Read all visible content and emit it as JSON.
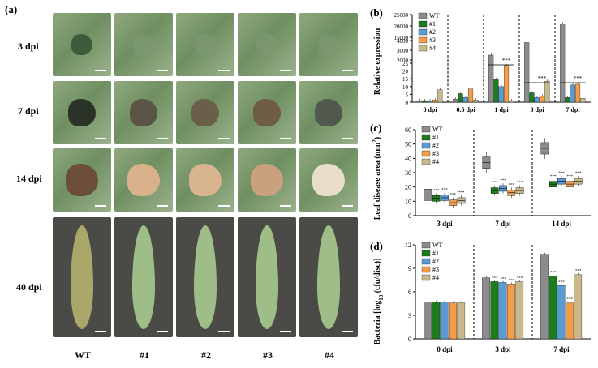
{
  "panels": {
    "a": "(a)",
    "b": "(b)",
    "c": "(c)",
    "d": "(d)"
  },
  "rows": [
    "3 dpi",
    "7 dpi",
    "14 dpi",
    "40 dpi"
  ],
  "cols": [
    "WT",
    "#1",
    "#2",
    "#3",
    "#4"
  ],
  "colors": {
    "WT": "#8c8c8c",
    "#1": "#1e7b1e",
    "#2": "#5b9bd5",
    "#3": "#f39c4a",
    "#4": "#c8b98a"
  },
  "chart_data": [
    {
      "type": "bar",
      "ylabel": "Relative expression",
      "categories": [
        "0 dpi",
        "0.5 dpi",
        "1 dpi",
        "3 dpi",
        "7 dpi"
      ],
      "ticks_low": [
        "0",
        "5",
        "10",
        "15",
        "20",
        "25"
      ],
      "ticks_high": [
        "2000",
        "3000",
        "4000",
        "15000",
        "20000",
        "25000"
      ],
      "significance": "***",
      "series": [
        {
          "name": "WT",
          "values": [
            1,
            2,
            2500,
            3800,
            21000
          ]
        },
        {
          "name": "#1",
          "values": [
            1,
            5.5,
            26,
            6,
            3
          ]
        },
        {
          "name": "#2",
          "values": [
            1,
            3,
            10,
            3,
            11
          ]
        },
        {
          "name": "#3",
          "values": [
            1.5,
            8.5,
            23.5,
            4,
            11.5
          ]
        },
        {
          "name": "#4",
          "values": [
            8,
            1.5,
            1,
            13.5,
            2.5
          ]
        }
      ]
    },
    {
      "type": "box",
      "ylabel": "Leaf disease area (mm",
      "ylabel_sup": "2",
      "ylabel_end": ")",
      "categories": [
        "3 dpi",
        "7 dpi",
        "14 dpi"
      ],
      "ylim": [
        0,
        60
      ],
      "ticks": [
        "0",
        "10",
        "20",
        "30",
        "40",
        "50",
        "60"
      ],
      "significance": "***",
      "series": [
        {
          "name": "WT",
          "values": [
            14.5,
            37,
            47
          ]
        },
        {
          "name": "#1",
          "values": [
            12,
            17.5,
            22
          ]
        },
        {
          "name": "#2",
          "values": [
            12.5,
            19,
            24
          ]
        },
        {
          "name": "#3",
          "values": [
            9,
            16,
            22
          ]
        },
        {
          "name": "#4",
          "values": [
            10.5,
            17.5,
            24
          ]
        }
      ]
    },
    {
      "type": "bar",
      "ylabel": "Bacteria [log",
      "ylabel_sub": "10",
      "ylabel_end": " (cfu/disc)]",
      "categories": [
        "0 dpi",
        "3 dpi",
        "7 dpi"
      ],
      "ylim": [
        0,
        12
      ],
      "ticks": [
        "0",
        "3",
        "6",
        "9",
        "12"
      ],
      "significance": "***",
      "series": [
        {
          "name": "WT",
          "values": [
            4.6,
            7.8,
            10.8
          ]
        },
        {
          "name": "#1",
          "values": [
            4.7,
            7.3,
            8.0
          ]
        },
        {
          "name": "#2",
          "values": [
            4.7,
            7.2,
            6.8
          ]
        },
        {
          "name": "#3",
          "values": [
            4.6,
            7.0,
            4.6
          ]
        },
        {
          "name": "#4",
          "values": [
            4.6,
            7.3,
            8.2
          ]
        }
      ]
    }
  ]
}
